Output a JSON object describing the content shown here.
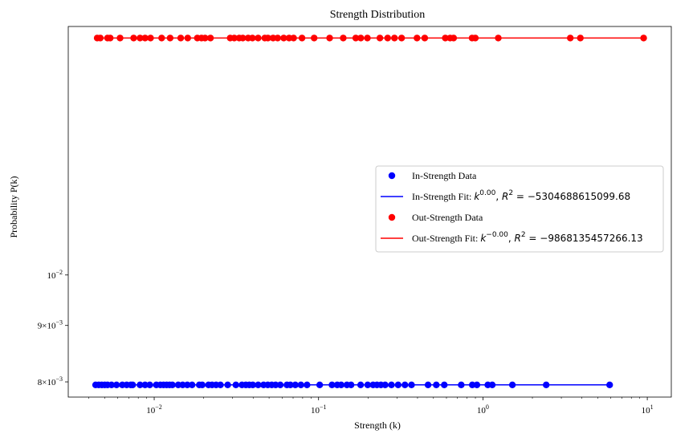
{
  "chart_data": {
    "type": "scatter",
    "title": "Strength Distribution",
    "xlabel": "Strength (k)",
    "ylabel": "Probability P(k)",
    "x_scale": "log",
    "y_scale": "log",
    "xlim": [
      0.003,
      14
    ],
    "ylim": [
      0.00775,
      0.0168
    ],
    "x_ticks": [
      {
        "value": 0.01,
        "base": "10",
        "exp": "−2"
      },
      {
        "value": 0.1,
        "base": "10",
        "exp": "−1"
      },
      {
        "value": 1,
        "base": "10",
        "exp": "0"
      },
      {
        "value": 10,
        "base": "10",
        "exp": "1"
      }
    ],
    "y_ticks": [
      {
        "value": 0.008,
        "mant": "8×10",
        "exp": "−3"
      },
      {
        "value": 0.009,
        "mant": "9×10",
        "exp": "−3"
      },
      {
        "value": 0.01,
        "mant": "10",
        "exp": "−2"
      }
    ],
    "grid": false,
    "legend_position": "center-right",
    "series": [
      {
        "name": "In-Strength Data",
        "kind": "points",
        "color": "#0000ff",
        "y": 0.00795,
        "x": [
          0.0044,
          0.0046,
          0.0048,
          0.005,
          0.0052,
          0.0055,
          0.0059,
          0.0064,
          0.0068,
          0.0072,
          0.0074,
          0.0082,
          0.0088,
          0.0094,
          0.0103,
          0.0109,
          0.0114,
          0.0119,
          0.0124,
          0.0129,
          0.014,
          0.0149,
          0.0159,
          0.017,
          0.0188,
          0.0196,
          0.0214,
          0.0225,
          0.0238,
          0.0253,
          0.028,
          0.0314,
          0.0342,
          0.0361,
          0.0379,
          0.0398,
          0.0429,
          0.0463,
          0.0491,
          0.0519,
          0.0548,
          0.0585,
          0.0642,
          0.0674,
          0.0722,
          0.0781,
          0.0851,
          0.1016,
          0.1207,
          0.1299,
          0.1373,
          0.1488,
          0.1577,
          0.1803,
          0.199,
          0.2146,
          0.2266,
          0.2396,
          0.2542,
          0.2777,
          0.3049,
          0.3354,
          0.3678,
          0.4636,
          0.5203,
          0.582,
          0.7379,
          0.8614,
          0.9192,
          1.0711,
          1.1397,
          1.5109,
          2.4262,
          5.9024
        ]
      },
      {
        "name": "In-Strength Fit: k^{0.00}, R^2 = -5304688615099.68",
        "kind": "line",
        "color": "#0000ff",
        "y": 0.00795,
        "x_range": [
          0.0044,
          5.9024
        ]
      },
      {
        "name": "Out-Strength Data",
        "kind": "points",
        "color": "#ff0000",
        "y": 0.0164,
        "x": [
          0.0045,
          0.0047,
          0.0052,
          0.0054,
          0.0062,
          0.0075,
          0.0082,
          0.0088,
          0.0095,
          0.0111,
          0.0125,
          0.0145,
          0.016,
          0.0183,
          0.0194,
          0.0204,
          0.022,
          0.029,
          0.0307,
          0.0329,
          0.0346,
          0.0373,
          0.0396,
          0.0429,
          0.0471,
          0.0492,
          0.0529,
          0.0564,
          0.0614,
          0.0662,
          0.0705,
          0.0793,
          0.094,
          0.1168,
          0.1413,
          0.1684,
          0.1807,
          0.1982,
          0.2362,
          0.2633,
          0.2896,
          0.3201,
          0.3971,
          0.4426,
          0.5904,
          0.6318,
          0.6633,
          0.859,
          0.8991,
          1.2398,
          3.4003,
          3.9161,
          9.5018
        ]
      },
      {
        "name": "Out-Strength Fit: k^{-0.00}, R^2 = -9868135457266.13",
        "kind": "line",
        "color": "#ff0000",
        "y": 0.0164,
        "x_range": [
          0.0045,
          9.5018
        ]
      }
    ],
    "legend": [
      {
        "type": "dot",
        "color": "#0000ff",
        "prefix": "In-Strength Data",
        "math": []
      },
      {
        "type": "line",
        "color": "#0000ff",
        "prefix": "In-Strength Fit: ",
        "math": [
          {
            "t": "k",
            "i": true
          },
          {
            "t": "0.00",
            "s": true
          },
          {
            "t": ", "
          },
          {
            "t": "R",
            "i": true
          },
          {
            "t": "2",
            "s": true
          },
          {
            "t": " = −5304688615099.68"
          }
        ]
      },
      {
        "type": "dot",
        "color": "#ff0000",
        "prefix": "Out-Strength Data",
        "math": []
      },
      {
        "type": "line",
        "color": "#ff0000",
        "prefix": "Out-Strength Fit: ",
        "math": [
          {
            "t": "k",
            "i": true
          },
          {
            "t": "−0.00",
            "s": true
          },
          {
            "t": ", "
          },
          {
            "t": "R",
            "i": true
          },
          {
            "t": "2",
            "s": true
          },
          {
            "t": " = −9868135457266.13"
          }
        ]
      }
    ]
  }
}
